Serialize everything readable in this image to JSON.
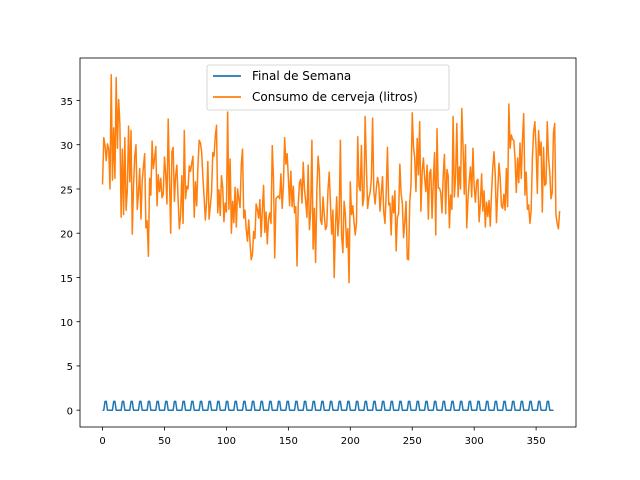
{
  "chart_data": {
    "type": "line",
    "title": "",
    "xlabel": "",
    "ylabel": "",
    "xlim": [
      -18.2,
      382.2
    ],
    "ylim": [
      -1.9,
      39.8
    ],
    "x_ticks": [
      0,
      50,
      100,
      150,
      200,
      250,
      300,
      350
    ],
    "y_ticks": [
      0,
      5,
      10,
      15,
      20,
      25,
      30,
      35
    ],
    "grid": false,
    "legend": {
      "position": "upper center"
    },
    "series": [
      {
        "name": "Final de Semana",
        "color": "#1f77b4",
        "rule": "weekly",
        "x_start": 0,
        "x_end": 364,
        "high": 1,
        "low": 0,
        "first_high_day": 2,
        "high_days_per_week": 2
      },
      {
        "name": "Consumo de cerveja (litros)",
        "color": "#ff7f0e",
        "x_start": 0,
        "x_step": 1,
        "values": [
          25.5,
          30.8,
          29.9,
          28.2,
          30.1,
          29.5,
          25.0,
          37.9,
          26.0,
          31.9,
          26.2,
          37.6,
          29.6,
          35.1,
          32.3,
          21.8,
          29.5,
          22.1,
          30.8,
          22.6,
          24.8,
          32.1,
          25.8,
          31.6,
          19.9,
          25.3,
          28.7,
          30.0,
          22.7,
          24.5,
          27.3,
          21.6,
          25.9,
          27.5,
          29.0,
          20.6,
          21.4,
          17.4,
          26.2,
          24.3,
          30.4,
          27.3,
          28.4,
          29.8,
          23.1,
          26.6,
          24.7,
          26.2,
          24.0,
          24.4,
          28.6,
          26.7,
          23.3,
          32.9,
          26.3,
          20.0,
          29.2,
          29.7,
          23.6,
          26.5,
          27.7,
          23.8,
          20.5,
          22.0,
          26.5,
          21.1,
          31.6,
          23.9,
          25.3,
          25.0,
          27.6,
          27.0,
          27.9,
          28.7,
          21.8,
          25.8,
          23.1,
          27.6,
          30.5,
          30.2,
          29.2,
          26.3,
          24.1,
          21.5,
          23.6,
          28.1,
          21.6,
          23.1,
          24.6,
          29.1,
          28.7,
          30.9,
          32.2,
          22.3,
          24.9,
          22.0,
          26.5,
          25.2,
          21.3,
          23.4,
          22.4,
          33.7,
          22.7,
          28.4,
          20.0,
          23.6,
          21.2,
          25.2,
          20.7,
          25.0,
          23.9,
          22.9,
          27.7,
          29.5,
          21.7,
          22.6,
          20.4,
          19.1,
          21.5,
          19.0,
          17.0,
          17.6,
          20.2,
          19.4,
          23.3,
          22.7,
          21.7,
          23.8,
          19.6,
          22.6,
          25.4,
          20.1,
          22.4,
          18.8,
          21.6,
          22.3,
          21.1,
          29.9,
          26.1,
          17.2,
          23.9,
          24.1,
          24.2,
          23.9,
          26.7,
          22.8,
          25.4,
          30.8,
          27.8,
          29.0,
          26.3,
          23.1,
          27.0,
          23.0,
          25.3,
          22.3,
          23.0,
          16.3,
          23.3,
          25.7,
          26.1,
          23.4,
          28.0,
          25.0,
          23.6,
          21.8,
          27.7,
          20.4,
          22.5,
          30.5,
          18.2,
          22.8,
          16.7,
          24.8,
          28.7,
          27.0,
          21.5,
          21.0,
          24.1,
          22.1,
          20.4,
          20.8,
          24.9,
          26.9,
          23.2,
          19.9,
          22.6,
          15.0,
          20.7,
          24.1,
          19.7,
          21.9,
          30.5,
          19.7,
          17.8,
          23.6,
          22.2,
          18.4,
          20.5,
          14.4,
          25.8,
          22.1,
          23.1,
          21.3,
          19.8,
          21.2,
          30.9,
          25.3,
          24.8,
          29.9,
          23.1,
          24.1,
          33.2,
          27.6,
          22.8,
          24.0,
          24.6,
          26.1,
          33.0,
          24.8,
          23.3,
          25.0,
          26.3,
          25.5,
          22.5,
          24.5,
          26.4,
          22.4,
          21.1,
          24.5,
          29.7,
          23.2,
          23.4,
          19.8,
          24.2,
          22.3,
          24.8,
          18.0,
          21.8,
          22.2,
          27.8,
          24.5,
          23.4,
          19.5,
          21.3,
          23.6,
          17.1,
          17.0,
          23.5,
          25.4,
          33.6,
          29.8,
          28.5,
          24.7,
          30.7,
          26.6,
          32.6,
          22.5,
          26.9,
          28.5,
          26.3,
          24.7,
          27.7,
          21.6,
          26.8,
          27.2,
          21.7,
          25.8,
          29.1,
          19.8,
          31.8,
          25.1,
          25.1,
          24.6,
          22.3,
          26.5,
          28.9,
          22.2,
          27.2,
          26.5,
          20.6,
          24.3,
          22.7,
          33.2,
          24.1,
          26.4,
          32.4,
          24.1,
          27.5,
          25.0,
          34.1,
          29.9,
          24.4,
          30.0,
          20.6,
          23.8,
          25.9,
          27.5,
          24.1,
          29.6,
          25.3,
          23.5,
          25.9,
          26.1,
          21.3,
          23.3,
          26.7,
          22.5,
          24.8,
          20.7,
          23.5,
          21.9,
          23.7,
          20.8,
          24.5,
          27.4,
          29.2,
          26.7,
          21.2,
          24.6,
          27.9,
          26.3,
          23.1,
          22.8,
          24.4,
          22.6,
          27.3,
          23.0,
          34.6,
          29.6,
          31.1,
          30.6,
          30.5,
          28.4,
          24.6,
          28.5,
          25.7,
          30.2,
          26.2,
          30.6,
          33.5,
          24.3,
          26.9,
          22.7,
          23.2,
          21.1,
          22.6,
          28.5,
          31.5,
          32.6,
          29.5,
          24.5,
          31.6,
          28.8,
          30.3,
          22.4,
          29.7,
          25.4,
          25.6,
          32.6,
          28.6,
          26.9,
          23.9,
          24.6,
          31.3,
          32.4,
          22.1,
          21.1,
          20.5,
          22.5
        ]
      }
    ]
  }
}
